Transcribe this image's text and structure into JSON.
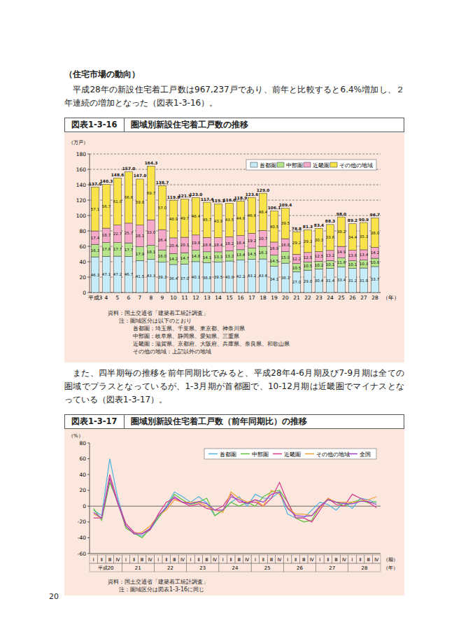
{
  "page": {
    "heading": "（住宅市場の動向）",
    "paragraphs": [
      "平成28年の新設住宅着工戸数は967,237戸であり、前年と比較すると6.4%増加し、２年連続の増加となった（図表1-3-16）。",
      "また、四半期毎の推移を前年同期比でみると、平成28年4-6月期及び7-9月期は全ての圏域でプラスとなっているが、1-3月期が首都圏で、10-12月期は近畿圏でマイナスとなっている（図表1-3-17）。"
    ],
    "page_number": "20"
  },
  "figures": [
    {
      "number": "図表1-3-16",
      "title": "圏域別新設住宅着工戸数の推移",
      "notes": [
        "資料：国土交通省「建築着工統計調査」",
        "注：圏域区分は以下のとおり",
        "首都圏：埼玉県、千葉県、東京都、神奈川県",
        "中部圏：岐阜県、静岡県、愛知県、三重県",
        "近畿圏：滋賀県、京都府、大阪府、兵庫県、奈良県、和歌山県",
        "その他の地域：上記以外の地域"
      ]
    },
    {
      "number": "図表1-3-17",
      "title": "圏域別新設住宅着工戸数（前年同期比）の推移",
      "notes": [
        "資料：国土交通省「建築着工統計調査」",
        "注：圏域区分は図表1-3-16に同じ"
      ]
    }
  ],
  "chart_data": [
    {
      "type": "bar",
      "stacked": true,
      "data_labels": true,
      "grid": true,
      "legend": "upper right",
      "y_label": "（万戸）",
      "x_label": "（年）",
      "categories": [
        "平成3",
        "4",
        "5",
        "6",
        "7",
        "8",
        "9",
        "10",
        "11",
        "12",
        "13",
        "14",
        "15",
        "16",
        "17",
        "18",
        "19",
        "20",
        "21",
        "22",
        "23",
        "24",
        "25",
        "26",
        "27",
        "28"
      ],
      "ylim": [
        0,
        180
      ],
      "yticks": [
        0,
        20,
        40,
        60,
        80,
        100,
        120,
        140,
        160,
        180
      ],
      "series": [
        {
          "name": "首都圏",
          "color": "#c6ecf7",
          "values": [
            46.3,
            47.1,
            47.2,
            46.7,
            41.5,
            43.3,
            39.3,
            36.4,
            37.0,
            40.1,
            38.8,
            39.5,
            40.9,
            42.2,
            43.2,
            43.6,
            34.1,
            38.1,
            27.0,
            29.0,
            30.4,
            31.4,
            33.4,
            31.2,
            31.8,
            33.7
          ],
          "value_labels": [
            "46.3",
            "47.1",
            "47.2",
            "46.7",
            "41.5",
            "43.3",
            "39.3",
            "36.4",
            "37.0",
            "40.1",
            "38.8",
            "39.5",
            "40.9",
            "42.2",
            "43.2",
            "43.6",
            "34.1",
            "38.1",
            "27.0",
            "29.0",
            "30.4",
            "31.4",
            "33.4",
            "31.2",
            "31.8",
            "33.7"
          ]
        },
        {
          "name": "中部圏",
          "color": "#b6e58c",
          "values": [
            16.3,
            17.8,
            17.7,
            17.7,
            17.9,
            18.1,
            16.0,
            14.2,
            14.7,
            14.8,
            14.1,
            13.3,
            13.3,
            13.4,
            14.5,
            16.3,
            14.5,
            15.0,
            10.5,
            10.5,
            10.2,
            10.1,
            11.6,
            10.1,
            10.3,
            10.8
          ],
          "value_labels": [
            "16.3",
            "17.8",
            "17.7",
            "17.7",
            "17.9",
            "18.1",
            "16.0",
            "14.2",
            "14.7",
            "14.8",
            "14.1",
            "13.3",
            "13.3",
            "13.4",
            "14.5",
            "16.3",
            "14.5",
            "15.0",
            "10.5",
            "10.5",
            "10.2",
            "10.1",
            "11.6",
            "10.1",
            "10.3",
            "10.8"
          ]
        },
        {
          "name": "近畿圏",
          "color": "#f6a9c9",
          "values": [
            17.4,
            18.7,
            22.7,
            25.7,
            28.1,
            33.0,
            26.4,
            20.4,
            20.1,
            19.8,
            18.6,
            18.4,
            18.2,
            18.4,
            19.2,
            20.7,
            16.9,
            16.8,
            12.2,
            12.5,
            12.5,
            13.2,
            14.9,
            13.6,
            13.4,
            14.2
          ],
          "value_labels": [
            "17.4",
            "18.7",
            "22.7",
            "25.7",
            "28.1",
            "33.0",
            "26.4",
            "20.4",
            "20.1",
            "19.8",
            "18.6",
            "18.4",
            "18.2",
            "18.4",
            "19.2",
            "20.7",
            "16.9",
            "16.8",
            "12.2",
            "12.5",
            "12.5",
            "13.2",
            "14.9",
            "13.6",
            "13.4",
            "14.2"
          ]
        },
        {
          "name": "その他の地域",
          "color": "#f8e44a",
          "values": [
            57.1,
            56.7,
            61.0,
            66.6,
            59.8,
            69.7,
            57.0,
            48.9,
            49.7,
            48.4,
            45.7,
            43.9,
            43.5,
            44.8,
            46.6,
            48.4,
            40.5,
            39.5,
            29.2,
            29.3,
            30.3,
            33.6,
            38.2,
            34.4,
            35.3,
            38.0
          ],
          "value_labels": [
            "57.1",
            "56.7",
            "61.0",
            "66.6",
            "59.8",
            "69.7",
            "57.0",
            "48.9",
            "49.7",
            "48.4",
            "45.7",
            "43.9",
            "43.5",
            "44.8",
            "46.6",
            "48.4",
            "40.5",
            "39.5",
            "29.2",
            "29.3",
            "30.3",
            "33.6",
            "38.2",
            "34.4",
            "35.3",
            "38.0"
          ]
        }
      ],
      "totals": {
        "values": [
          137.0,
          140.3,
          148.6,
          157.0,
          147.0,
          164.3,
          138.7,
          119.8,
          121.5,
          123.0,
          117.4,
          115.1,
          116.0,
          118.9,
          123.6,
          129.0,
          106.1,
          109.4,
          78.8,
          81.3,
          83.4,
          88.3,
          98.0,
          89.2,
          90.9,
          96.7
        ],
        "value_labels": [
          "137.0",
          "140.3",
          "148.6",
          "157.0",
          "147.0",
          "164.3",
          "138.7",
          "119.8",
          "121.5",
          "123.0",
          "117.4",
          "115.1",
          "116.0",
          "118.9",
          "123.6",
          "129.0",
          "106.1",
          "109.4",
          "78.8",
          "81.3",
          "83.4",
          "88.3",
          "98.0",
          "89.2",
          "90.9",
          "96.7"
        ]
      }
    },
    {
      "type": "line",
      "grid": false,
      "legend": "upper right",
      "y_label": "（%）",
      "x_label": "（期）",
      "year_label": "（年）",
      "categories": [
        "Ⅰ",
        "Ⅱ",
        "Ⅲ",
        "Ⅳ",
        "Ⅰ",
        "Ⅱ",
        "Ⅲ",
        "Ⅳ",
        "Ⅰ",
        "Ⅱ",
        "Ⅲ",
        "Ⅳ",
        "Ⅰ",
        "Ⅱ",
        "Ⅲ",
        "Ⅳ",
        "Ⅰ",
        "Ⅱ",
        "Ⅲ",
        "Ⅳ",
        "Ⅰ",
        "Ⅱ",
        "Ⅲ",
        "Ⅳ",
        "Ⅰ",
        "Ⅱ",
        "Ⅲ",
        "Ⅳ",
        "Ⅰ",
        "Ⅱ",
        "Ⅲ",
        "Ⅳ",
        "Ⅰ",
        "Ⅱ",
        "Ⅲ",
        "Ⅳ"
      ],
      "year_labels": [
        "平成20",
        "21",
        "22",
        "23",
        "24",
        "25",
        "26",
        "27",
        "28"
      ],
      "ylim": [
        -60,
        80
      ],
      "yticks": [
        -60,
        -40,
        -20,
        0,
        20,
        40,
        60,
        80
      ],
      "series": [
        {
          "name": "首都圏",
          "color": "#4fb3e0",
          "values": [
            -5,
            -12,
            60,
            10,
            -25,
            -35,
            -38,
            -30,
            -15,
            0,
            18,
            12,
            5,
            12,
            4,
            -12,
            -5,
            5,
            12,
            0,
            15,
            10,
            10,
            18,
            -10,
            -15,
            -15,
            -5,
            5,
            2,
            -5,
            5,
            -3,
            10,
            8,
            4
          ]
        },
        {
          "name": "中部圏",
          "color": "#5cc23a",
          "values": [
            -3,
            -18,
            30,
            5,
            -28,
            -34,
            -40,
            -28,
            -15,
            -2,
            15,
            8,
            2,
            5,
            10,
            -12,
            -5,
            5,
            0,
            5,
            0,
            12,
            18,
            20,
            5,
            -15,
            -20,
            -18,
            0,
            8,
            5,
            0,
            5,
            8,
            4,
            6
          ]
        },
        {
          "name": "近畿圏",
          "color": "#d83a8c",
          "values": [
            -15,
            -15,
            40,
            5,
            -22,
            -33,
            -35,
            -30,
            -10,
            5,
            10,
            5,
            0,
            3,
            -3,
            -5,
            0,
            15,
            5,
            5,
            5,
            0,
            10,
            30,
            5,
            -15,
            -15,
            -20,
            -5,
            10,
            2,
            0,
            15,
            10,
            5,
            -2
          ]
        },
        {
          "name": "その他の地域",
          "color": "#f0a030",
          "values": [
            -10,
            -15,
            35,
            3,
            -25,
            -35,
            -33,
            -25,
            -12,
            -5,
            8,
            5,
            5,
            5,
            0,
            -5,
            -8,
            18,
            10,
            5,
            8,
            0,
            20,
            15,
            -2,
            -10,
            -10,
            -12,
            -2,
            10,
            5,
            5,
            5,
            6,
            8,
            12
          ]
        },
        {
          "name": "全国",
          "color": "#9b3fcf",
          "values": [
            -8,
            -15,
            35,
            3,
            -25,
            -35,
            -35,
            -28,
            -12,
            -2,
            12,
            5,
            3,
            6,
            3,
            -5,
            -5,
            12,
            8,
            3,
            8,
            5,
            15,
            18,
            -3,
            -12,
            -13,
            -12,
            0,
            8,
            5,
            3,
            3,
            6,
            6,
            2
          ]
        }
      ]
    }
  ]
}
